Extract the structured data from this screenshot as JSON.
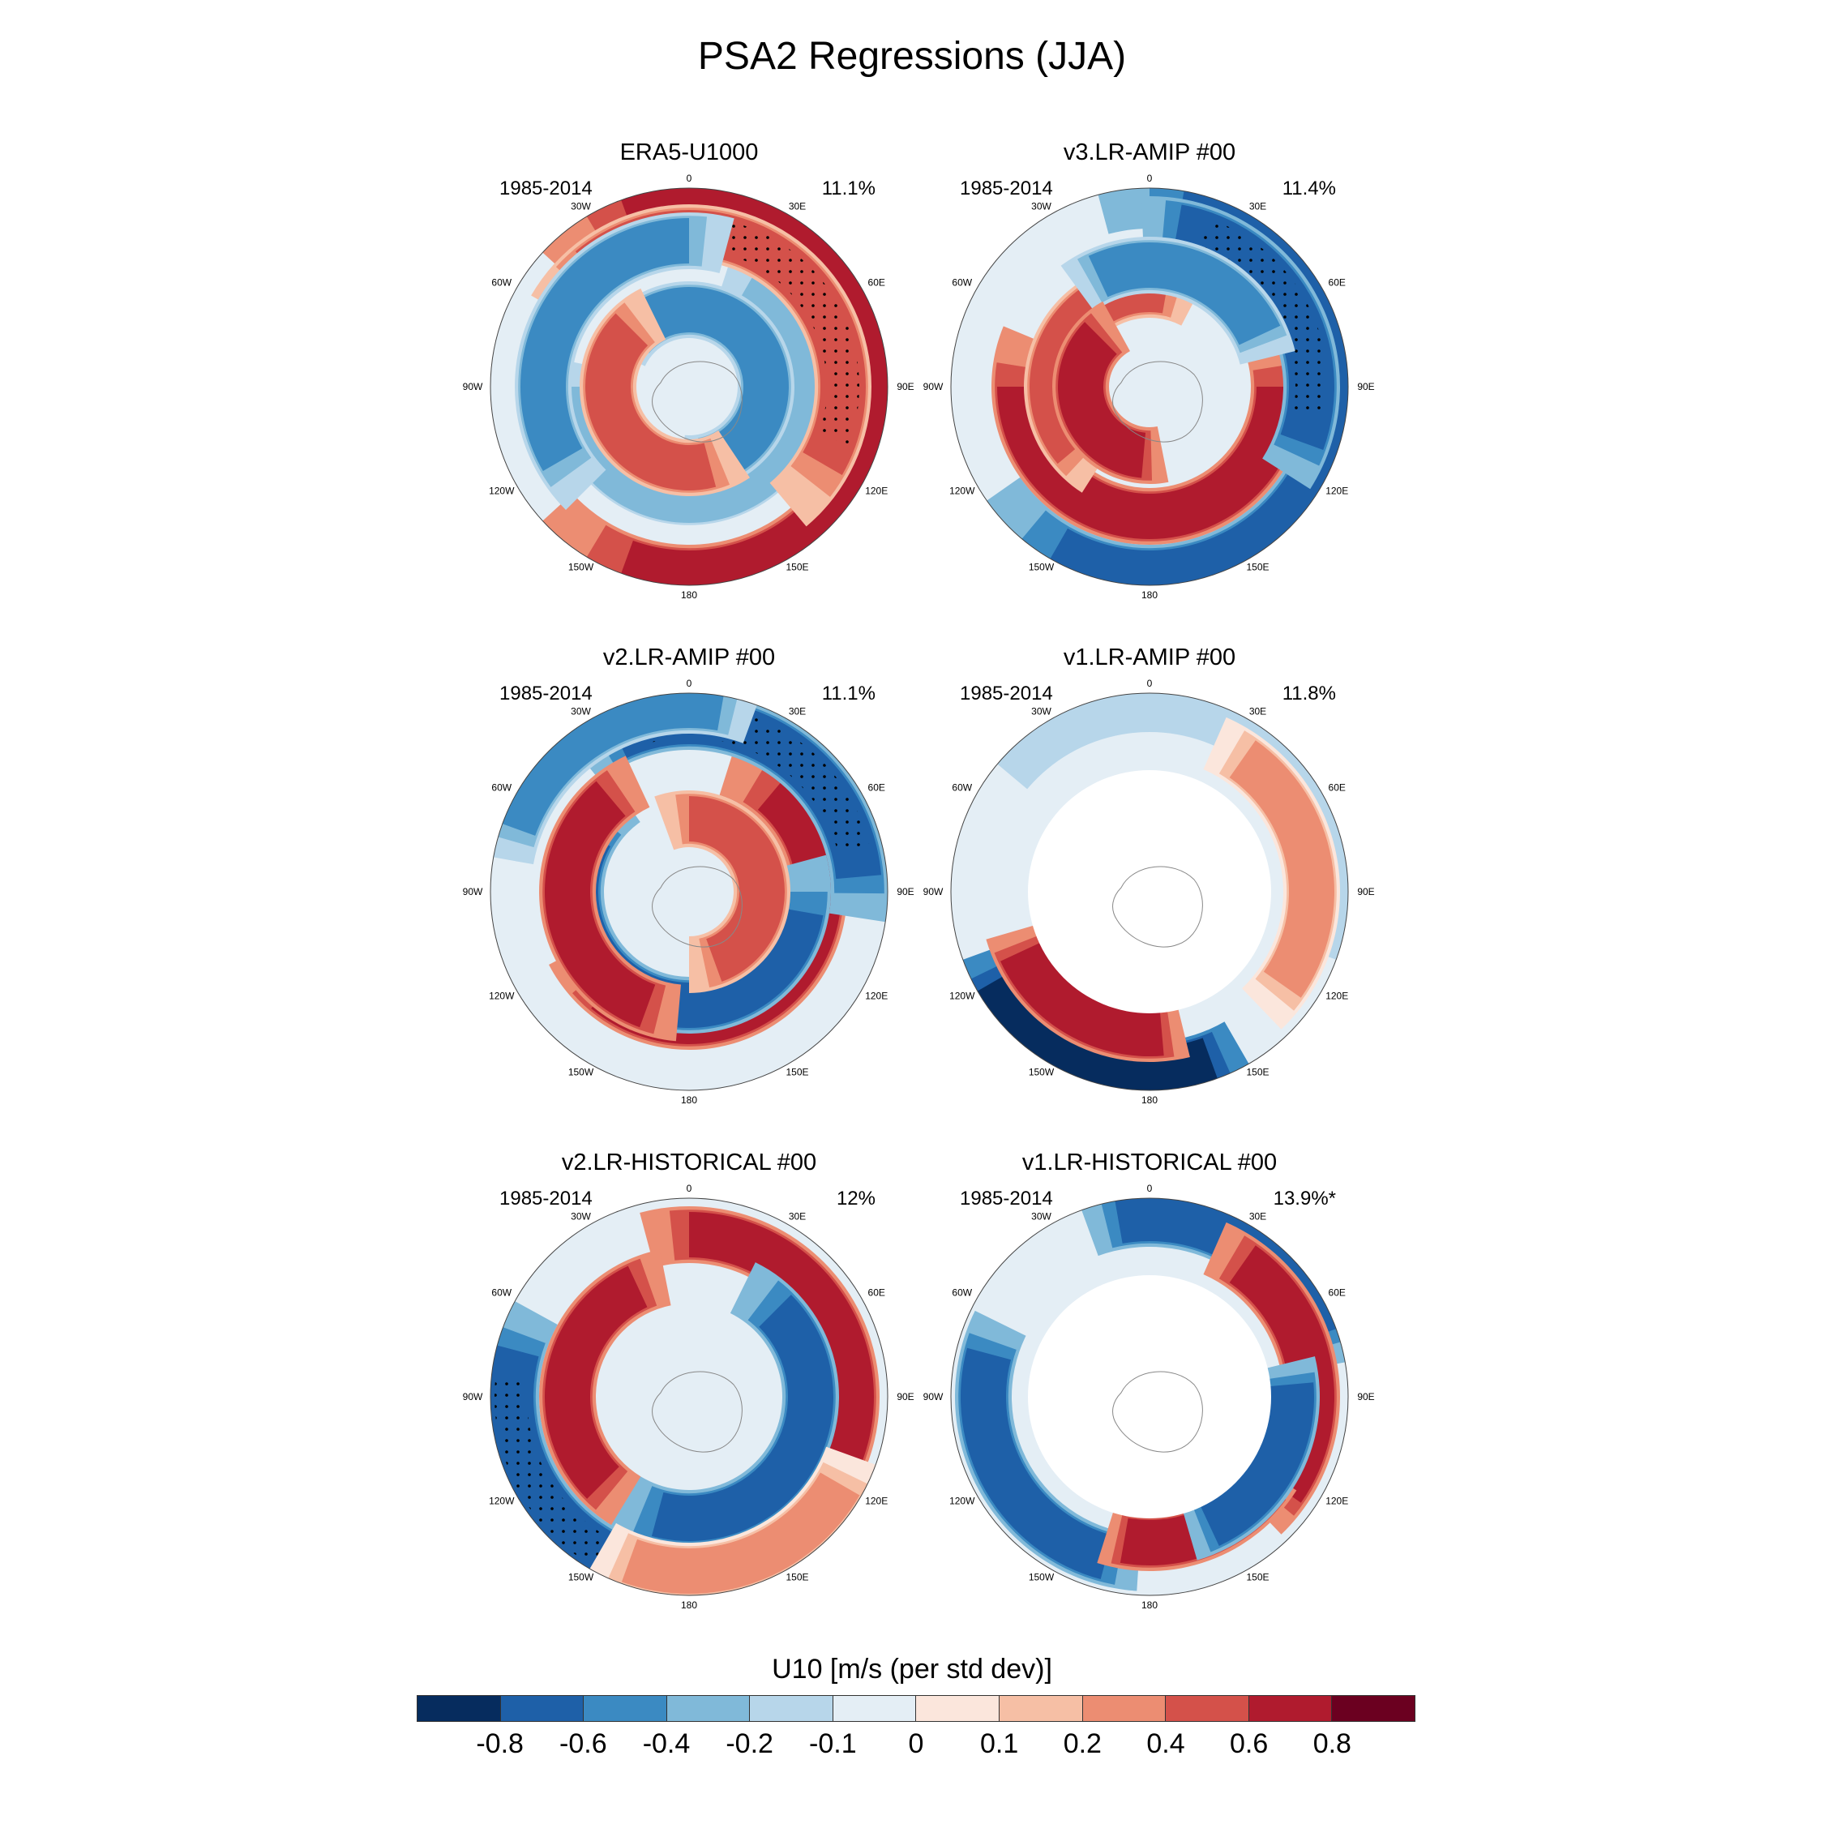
{
  "title": "PSA2 Regressions (JJA)",
  "panels": [
    {
      "name": "ERA5-U1000",
      "period": "1985-2014",
      "pct": "11.1%"
    },
    {
      "name": "v3.LR-AMIP  #00",
      "period": "1985-2014",
      "pct": "11.4%"
    },
    {
      "name": "v2.LR-AMIP  #00",
      "period": "1985-2014",
      "pct": "11.1%"
    },
    {
      "name": "v1.LR-AMIP  #00",
      "period": "1985-2014",
      "pct": "11.8%"
    },
    {
      "name": "v2.LR-HISTORICAL  #00",
      "period": "1985-2014",
      "pct": "12%"
    },
    {
      "name": "v1.LR-HISTORICAL  #00",
      "period": "1985-2014",
      "pct": "13.9%*"
    }
  ],
  "longitude_labels": [
    "0",
    "30E",
    "60E",
    "90E",
    "120E",
    "150E",
    "180",
    "150W",
    "120W",
    "90W",
    "60W",
    "30W"
  ],
  "legend": {
    "title": "U10 [m/s (per std dev)]",
    "ticks": [
      "-0.8",
      "-0.6",
      "-0.4",
      "-0.2",
      "-0.1",
      "0",
      "0.1",
      "0.2",
      "0.4",
      "0.6",
      "0.8"
    ],
    "colors": [
      "#062c5e",
      "#1e60a8",
      "#3b8ac2",
      "#80b9d9",
      "#b7d6ea",
      "#e4eef5",
      "#fbe6dc",
      "#f6bfa5",
      "#ec8d72",
      "#d4514a",
      "#b01b2e",
      "#6b0020"
    ]
  }
}
